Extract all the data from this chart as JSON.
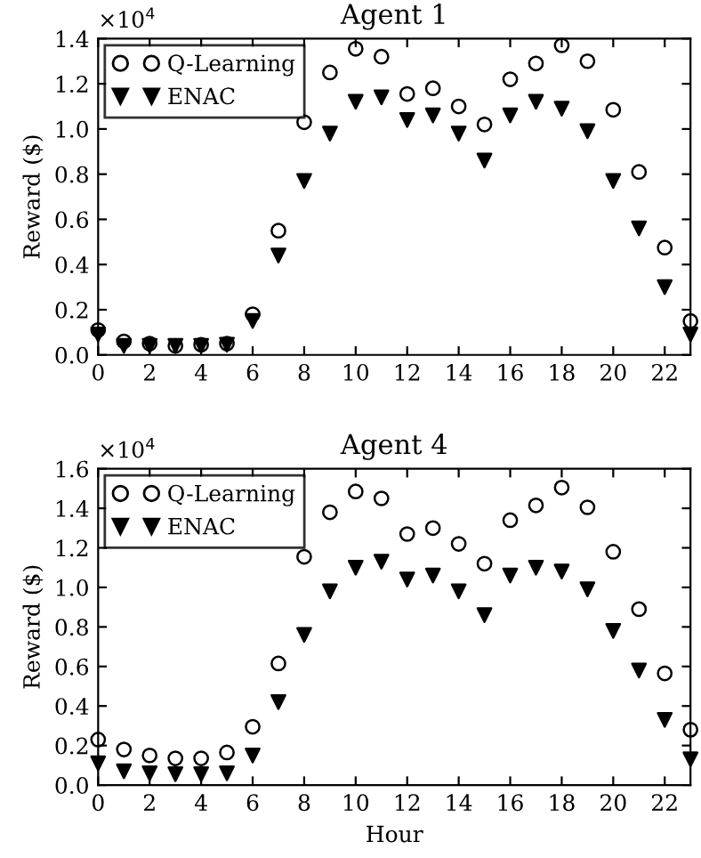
{
  "chart_data": [
    {
      "type": "scatter",
      "title": "Agent 1",
      "ylabel": "Reward ($)",
      "annotations": [
        "×10$^{4}$"
      ],
      "x": [
        0,
        1,
        2,
        3,
        4,
        5,
        6,
        7,
        8,
        9,
        10,
        11,
        12,
        13,
        14,
        15,
        16,
        17,
        18,
        19,
        20,
        21,
        22,
        23
      ],
      "series": [
        {
          "name": "Q-Learning",
          "color": "#000000",
          "marker": "circle",
          "values": [
            0.11,
            0.06,
            0.05,
            0.04,
            0.045,
            0.05,
            0.18,
            0.55,
            1.03,
            1.25,
            1.355,
            1.32,
            1.155,
            1.18,
            1.1,
            1.02,
            1.22,
            1.29,
            1.37,
            1.3,
            1.085,
            0.81,
            0.475,
            0.15
          ]
        },
        {
          "name": "ENAC",
          "color": "#000000",
          "marker": "triangle",
          "values": [
            0.09,
            0.04,
            0.04,
            0.04,
            0.04,
            0.045,
            0.15,
            0.44,
            0.77,
            0.98,
            1.12,
            1.14,
            1.04,
            1.06,
            0.98,
            0.86,
            1.06,
            1.12,
            1.09,
            0.99,
            0.77,
            0.56,
            0.3,
            0.09
          ]
        }
      ],
      "xlim": [
        0,
        23
      ],
      "xticks": [
        0,
        2,
        4,
        6,
        8,
        10,
        12,
        14,
        16,
        18,
        20,
        22
      ],
      "ylim": [
        0,
        1.4
      ],
      "yticks": [
        {
          "value": 0,
          "label": "0.0"
        },
        {
          "value": 0.2,
          "label": "0.2"
        },
        {
          "value": 0.4,
          "label": "0.4"
        },
        {
          "value": 0.6,
          "label": "0.6"
        },
        {
          "value": 0.8,
          "label": "0.8"
        },
        {
          "value": 1.0,
          "label": "1.0"
        },
        {
          "value": 1.2,
          "label": "1.2"
        },
        {
          "value": 1.4,
          "label": "1.4"
        }
      ],
      "legend": "top left",
      "grid": false
    },
    {
      "type": "scatter",
      "title": "Agent 4",
      "xlabel": "Hour",
      "ylabel": "Reward ($)",
      "annotations": [
        "×10$^{4}$"
      ],
      "x": [
        0,
        1,
        2,
        3,
        4,
        5,
        6,
        7,
        8,
        9,
        10,
        11,
        12,
        13,
        14,
        15,
        16,
        17,
        18,
        19,
        20,
        21,
        22,
        23
      ],
      "series": [
        {
          "name": "Q-Learning",
          "color": "#000000",
          "marker": "circle",
          "values": [
            0.23,
            0.18,
            0.15,
            0.135,
            0.135,
            0.165,
            0.295,
            0.615,
            1.155,
            1.38,
            1.485,
            1.45,
            1.27,
            1.3,
            1.22,
            1.12,
            1.34,
            1.415,
            1.505,
            1.405,
            1.18,
            0.89,
            0.565,
            0.28
          ]
        },
        {
          "name": "ENAC",
          "color": "#000000",
          "marker": "triangle",
          "values": [
            0.11,
            0.07,
            0.06,
            0.055,
            0.055,
            0.06,
            0.15,
            0.42,
            0.76,
            0.98,
            1.1,
            1.13,
            1.04,
            1.06,
            0.98,
            0.86,
            1.06,
            1.1,
            1.08,
            0.99,
            0.78,
            0.58,
            0.33,
            0.13
          ]
        }
      ],
      "xlim": [
        0,
        23
      ],
      "xticks": [
        0,
        2,
        4,
        6,
        8,
        10,
        12,
        14,
        16,
        18,
        20,
        22
      ],
      "ylim": [
        0,
        1.6
      ],
      "yticks": [
        {
          "value": 0,
          "label": "0.0"
        },
        {
          "value": 0.2,
          "label": "0.2"
        },
        {
          "value": 0.4,
          "label": "0.4"
        },
        {
          "value": 0.6,
          "label": "0.6"
        },
        {
          "value": 0.8,
          "label": "0.8"
        },
        {
          "value": 1.0,
          "label": "1.0"
        },
        {
          "value": 1.2,
          "label": "1.2"
        },
        {
          "value": 1.4,
          "label": "1.4"
        },
        {
          "value": 1.6,
          "label": "1.6"
        }
      ],
      "legend": "top left",
      "grid": false
    }
  ]
}
